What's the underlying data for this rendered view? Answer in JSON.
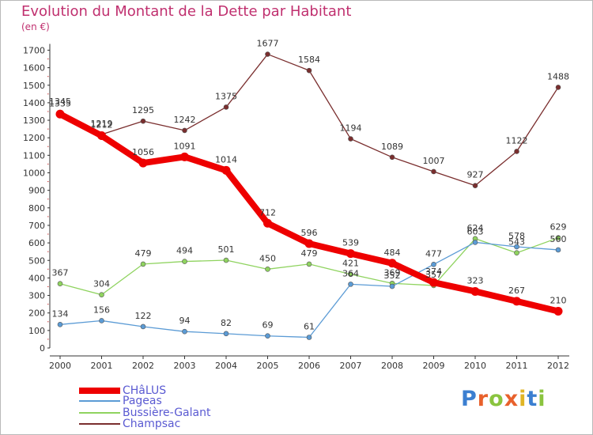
{
  "title": "Evolution du Montant de la Dette par Habitant",
  "subtitle": "(en €)",
  "logo": {
    "text": "Proxiti",
    "colors": [
      "#3b7fd1",
      "#e8612c",
      "#8ac43f",
      "#e8612c",
      "#e0b526",
      "#3b7fd1",
      "#8ac43f"
    ]
  },
  "chart_data": {
    "type": "line",
    "title": "Evolution du Montant de la Dette par Habitant",
    "ylabel": "(en €)",
    "xlabel": "",
    "x": [
      "2000",
      "2001",
      "2002",
      "2003",
      "2004",
      "2005",
      "2006",
      "2007",
      "2008",
      "2009",
      "2010",
      "2011",
      "2012"
    ],
    "ylim": [
      0,
      1700
    ],
    "yticks": [
      0,
      100,
      200,
      300,
      400,
      500,
      600,
      700,
      800,
      900,
      1000,
      1100,
      1200,
      1300,
      1400,
      1500,
      1600,
      1700
    ],
    "grid": false,
    "legend_position": "bottom-left",
    "series": [
      {
        "name": "CHâLUS",
        "color": "#ee0000",
        "values": [
          1335,
          1212,
          1056,
          1091,
          1014,
          712,
          596,
          539,
          484,
          374,
          323,
          267,
          210
        ]
      },
      {
        "name": "Pageas",
        "color": "#5b9bd5",
        "values": [
          134,
          156,
          122,
          94,
          82,
          69,
          61,
          364,
          352,
          477,
          603,
          578,
          560
        ]
      },
      {
        "name": "Bussière-Galant",
        "color": "#8fd35f",
        "values": [
          367,
          304,
          479,
          494,
          501,
          450,
          479,
          421,
          369,
          357,
          624,
          543,
          629
        ]
      },
      {
        "name": "Champsac",
        "color": "#7a2e2e",
        "values": [
          1345,
          1219,
          1295,
          1242,
          1375,
          1677,
          1584,
          1194,
          1089,
          1007,
          927,
          1122,
          1488
        ]
      }
    ]
  }
}
